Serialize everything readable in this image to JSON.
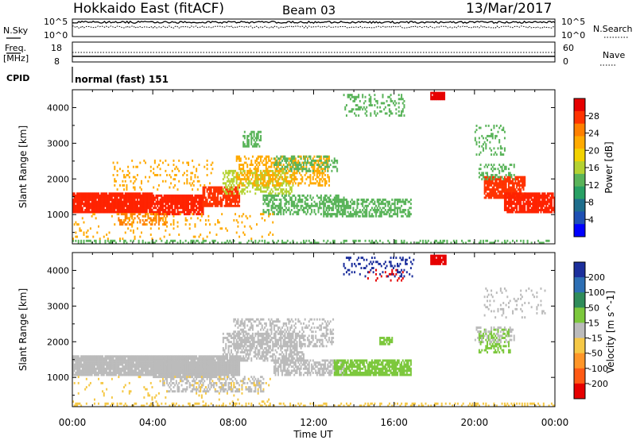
{
  "header": {
    "station": "Hokkaido East (fitACF)",
    "beam": "Beam 03",
    "date": "13/Mar/2017"
  },
  "strip_panels": {
    "nsky": {
      "label": "N.Sky",
      "tick_top": "10^5",
      "tick_bottom": "10^0"
    },
    "nsearch": {
      "label": "N.Search",
      "tick_top": "10^5",
      "tick_bottom": "10^0"
    },
    "freq": {
      "label": "Freq.",
      "unit": "[MHz]",
      "ticks": [
        "18",
        "8"
      ]
    },
    "nave": {
      "label": "Nave",
      "ticks": [
        "60",
        "0"
      ]
    },
    "cpid": {
      "label": "CPID",
      "value": "normal (fast) 151"
    }
  },
  "colorbars": {
    "power": {
      "label": "Power [dB]",
      "ticks": [
        "28",
        "24",
        "20",
        "16",
        "12",
        "8",
        "4"
      ],
      "colors": [
        "#e60000",
        "#ff3300",
        "#ff8000",
        "#ffaa00",
        "#f2d200",
        "#b4d232",
        "#5ab45a",
        "#28a064",
        "#1e6e8c",
        "#1e50b4",
        "#0000ff"
      ]
    },
    "velocity": {
      "label": "Velocity [m s^-1]",
      "ticks": [
        "200",
        "100",
        "50",
        "15",
        "-15",
        "-50",
        "-100",
        "-200"
      ],
      "colors": [
        "#1c2f9c",
        "#2d6fb4",
        "#2f8c5a",
        "#7cc83c",
        "#bbbbbb",
        "#f5c846",
        "#ff9628",
        "#ff5a14",
        "#e60000"
      ]
    }
  },
  "chart_data": [
    {
      "type": "heatmap",
      "name": "power",
      "ylabel": "Slant Range [km]",
      "yticks": [
        1000,
        2000,
        3000,
        4000
      ],
      "ylim": [
        180,
        4500
      ],
      "xlim": [
        0,
        24
      ],
      "blobs": [
        {
          "x0": 0.0,
          "x1": 4.0,
          "y0": 1080,
          "y1": 1620,
          "c": "#ff2200",
          "d": 0.95
        },
        {
          "x0": 4.0,
          "x1": 6.5,
          "y0": 1000,
          "y1": 1560,
          "c": "#ff2200",
          "d": 0.9
        },
        {
          "x0": 6.5,
          "x1": 8.3,
          "y0": 1250,
          "y1": 1750,
          "c": "#ff3300",
          "d": 0.85
        },
        {
          "x0": 2.3,
          "x1": 4.7,
          "y0": 700,
          "y1": 1000,
          "c": "#ff8000",
          "d": 0.45
        },
        {
          "x0": 7.5,
          "x1": 11.0,
          "y0": 1600,
          "y1": 2250,
          "c": "#b4d232",
          "d": 0.45
        },
        {
          "x0": 8.2,
          "x1": 12.8,
          "y0": 1850,
          "y1": 2600,
          "c": "#ffaa00",
          "d": 0.4
        },
        {
          "x0": 10.0,
          "x1": 13.2,
          "y0": 2200,
          "y1": 2650,
          "c": "#5ab45a",
          "d": 0.35
        },
        {
          "x0": 9.5,
          "x1": 13.5,
          "y0": 1000,
          "y1": 1550,
          "c": "#5ab45a",
          "d": 0.5
        },
        {
          "x0": 12.5,
          "x1": 16.8,
          "y0": 980,
          "y1": 1400,
          "c": "#5ab45a",
          "d": 0.55
        },
        {
          "x0": 2.0,
          "x1": 7.0,
          "y0": 1700,
          "y1": 2500,
          "c": "#ffaa00",
          "d": 0.12
        },
        {
          "x0": 8.5,
          "x1": 9.4,
          "y0": 2900,
          "y1": 3300,
          "c": "#5ab45a",
          "d": 0.5
        },
        {
          "x0": 13.5,
          "x1": 16.5,
          "y0": 3800,
          "y1": 4350,
          "c": "#5ab45a",
          "d": 0.25
        },
        {
          "x0": 17.8,
          "x1": 18.5,
          "y0": 4250,
          "y1": 4420,
          "c": "#e60000",
          "d": 0.9
        },
        {
          "x0": 20.5,
          "x1": 22.5,
          "y0": 1500,
          "y1": 2050,
          "c": "#ff3300",
          "d": 0.85
        },
        {
          "x0": 21.5,
          "x1": 24.0,
          "y0": 1100,
          "y1": 1620,
          "c": "#ff2200",
          "d": 0.85
        },
        {
          "x0": 20.2,
          "x1": 22.0,
          "y0": 2000,
          "y1": 2400,
          "c": "#5ab45a",
          "d": 0.3
        },
        {
          "x0": 20.0,
          "x1": 21.5,
          "y0": 2700,
          "y1": 3500,
          "c": "#5ab45a",
          "d": 0.2
        },
        {
          "x0": 0.0,
          "x1": 24.0,
          "y0": 200,
          "y1": 290,
          "c": "#5ab45a",
          "d": 0.35
        },
        {
          "x0": 0.0,
          "x1": 10.0,
          "y0": 300,
          "y1": 1000,
          "c": "#ffaa00",
          "d": 0.07
        }
      ]
    },
    {
      "type": "heatmap",
      "name": "velocity",
      "ylabel": "Slant Range [km]",
      "xlabel": "Time UT",
      "xticks": [
        "00:00",
        "04:00",
        "08:00",
        "12:00",
        "16:00",
        "20:00",
        "00:00"
      ],
      "yticks": [
        1000,
        2000,
        3000,
        4000
      ],
      "ylim": [
        180,
        4500
      ],
      "xlim": [
        0,
        24
      ],
      "blobs": [
        {
          "x0": 0.0,
          "x1": 8.3,
          "y0": 1080,
          "y1": 1620,
          "c": "#bbbbbb",
          "d": 0.95
        },
        {
          "x0": 4.0,
          "x1": 7.0,
          "y0": 1000,
          "y1": 1560,
          "c": "#bbbbbb",
          "d": 0.85
        },
        {
          "x0": 4.5,
          "x1": 9.5,
          "y0": 600,
          "y1": 1000,
          "c": "#bbbbbb",
          "d": 0.4
        },
        {
          "x0": 7.5,
          "x1": 11.5,
          "y0": 1500,
          "y1": 2250,
          "c": "#bbbbbb",
          "d": 0.55
        },
        {
          "x0": 8.0,
          "x1": 13.0,
          "y0": 1900,
          "y1": 2600,
          "c": "#bbbbbb",
          "d": 0.4
        },
        {
          "x0": 10.0,
          "x1": 13.5,
          "y0": 1100,
          "y1": 1500,
          "c": "#bbbbbb",
          "d": 0.6
        },
        {
          "x0": 13.0,
          "x1": 16.8,
          "y0": 1050,
          "y1": 1450,
          "c": "#7cc83c",
          "d": 0.8
        },
        {
          "x0": 15.3,
          "x1": 15.9,
          "y0": 1950,
          "y1": 2100,
          "c": "#7cc83c",
          "d": 0.8
        },
        {
          "x0": 17.8,
          "x1": 18.6,
          "y0": 4200,
          "y1": 4420,
          "c": "#e60000",
          "d": 0.9
        },
        {
          "x0": 13.5,
          "x1": 17.0,
          "y0": 3850,
          "y1": 4350,
          "c": "#1c2f9c",
          "d": 0.18
        },
        {
          "x0": 14.5,
          "x1": 16.5,
          "y0": 3700,
          "y1": 4000,
          "c": "#e60000",
          "d": 0.12
        },
        {
          "x0": 20.2,
          "x1": 21.8,
          "y0": 1700,
          "y1": 2350,
          "c": "#7cc83c",
          "d": 0.45
        },
        {
          "x0": 20.0,
          "x1": 22.0,
          "y0": 2000,
          "y1": 2400,
          "c": "#bbbbbb",
          "d": 0.3
        },
        {
          "x0": 20.5,
          "x1": 23.5,
          "y0": 2700,
          "y1": 3500,
          "c": "#bbbbbb",
          "d": 0.12
        },
        {
          "x0": 0.0,
          "x1": 24.0,
          "y0": 200,
          "y1": 290,
          "c": "#f5c846",
          "d": 0.3
        },
        {
          "x0": 0.0,
          "x1": 10.0,
          "y0": 300,
          "y1": 1000,
          "c": "#f5c846",
          "d": 0.05
        }
      ]
    }
  ]
}
